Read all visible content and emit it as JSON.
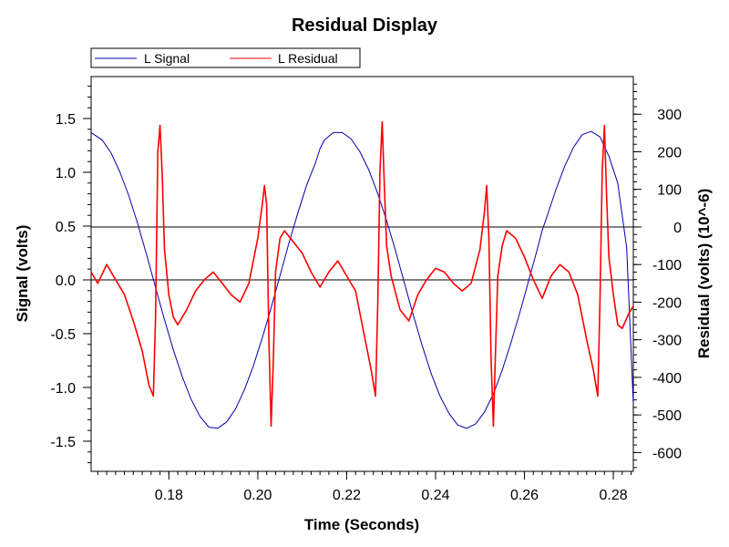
{
  "chart_data": {
    "type": "line",
    "title": "Residual Display",
    "xlabel": "Time (Seconds)",
    "ylabel_left": "Signal (volts)",
    "ylabel_right": "Residual (volts) (10^-6)",
    "xlim": [
      0.1625,
      0.2845
    ],
    "ylim_left": [
      -1.78,
      1.89
    ],
    "ylim_right": [
      -650,
      400
    ],
    "x_ticks": [
      0.18,
      0.2,
      0.22,
      0.24,
      0.26,
      0.28
    ],
    "x_tick_labels": [
      "0.18",
      "0.20",
      "0.22",
      "0.24",
      "0.26",
      "0.28"
    ],
    "y_left_ticks": [
      1.5,
      1.0,
      0.5,
      0.0,
      -0.5,
      -1.0,
      -1.5
    ],
    "y_left_tick_labels": [
      "1.5",
      "1.0",
      "0.5",
      "0.0",
      "-0.5",
      "-1.0",
      "-1.5"
    ],
    "y_right_ticks": [
      300,
      200,
      100,
      0,
      -100,
      -200,
      -300,
      -400,
      -500,
      -600
    ],
    "y_right_tick_labels": [
      "300",
      "200",
      "100",
      "0",
      "-100",
      "-200",
      "-300",
      "-400",
      "-500",
      "-600"
    ],
    "reference_lines": [
      {
        "axis": "left",
        "value": 0.0
      },
      {
        "axis": "right",
        "value": 0
      }
    ],
    "legend_placement": "top-left above plot",
    "grid": false,
    "series": [
      {
        "name": "L Signal",
        "axis": "left",
        "color": "#0000aa",
        "x": [
          0.1625,
          0.165,
          0.167,
          0.169,
          0.171,
          0.173,
          0.175,
          0.177,
          0.179,
          0.181,
          0.183,
          0.185,
          0.187,
          0.189,
          0.191,
          0.193,
          0.195,
          0.197,
          0.199,
          0.201,
          0.203,
          0.205,
          0.207,
          0.209,
          0.211,
          0.213,
          0.214,
          0.215,
          0.217,
          0.219,
          0.221,
          0.223,
          0.225,
          0.227,
          0.229,
          0.231,
          0.233,
          0.235,
          0.237,
          0.239,
          0.241,
          0.243,
          0.245,
          0.247,
          0.249,
          0.251,
          0.253,
          0.255,
          0.257,
          0.259,
          0.261,
          0.263,
          0.264,
          0.265,
          0.267,
          0.269,
          0.271,
          0.273,
          0.275,
          0.277,
          0.279,
          0.281,
          0.283,
          0.2845
        ],
        "y": [
          1.37,
          1.3,
          1.18,
          1.0,
          0.78,
          0.52,
          0.23,
          -0.07,
          -0.37,
          -0.65,
          -0.9,
          -1.11,
          -1.27,
          -1.37,
          -1.38,
          -1.32,
          -1.2,
          -1.02,
          -0.8,
          -0.54,
          -0.26,
          0.04,
          0.34,
          0.62,
          0.88,
          1.09,
          1.22,
          1.3,
          1.37,
          1.37,
          1.31,
          1.19,
          1.02,
          0.8,
          0.55,
          0.27,
          -0.03,
          -0.33,
          -0.61,
          -0.87,
          -1.08,
          -1.24,
          -1.35,
          -1.38,
          -1.34,
          -1.23,
          -1.06,
          -0.84,
          -0.58,
          -0.3,
          0.0,
          0.3,
          0.46,
          0.58,
          0.83,
          1.05,
          1.23,
          1.35,
          1.38,
          1.33,
          1.15,
          0.9,
          0.3,
          -1.15
        ]
      },
      {
        "name": "L Residual",
        "axis": "right",
        "color": "#ff0000",
        "x": [
          0.1625,
          0.164,
          0.166,
          0.168,
          0.17,
          0.172,
          0.174,
          0.1755,
          0.1765,
          0.177,
          0.1775,
          0.178,
          0.1785,
          0.179,
          0.18,
          0.181,
          0.182,
          0.184,
          0.186,
          0.188,
          0.19,
          0.192,
          0.194,
          0.196,
          0.198,
          0.2,
          0.201,
          0.2015,
          0.202,
          0.2025,
          0.203,
          0.2035,
          0.204,
          0.205,
          0.206,
          0.208,
          0.21,
          0.212,
          0.214,
          0.216,
          0.218,
          0.22,
          0.222,
          0.224,
          0.2255,
          0.2265,
          0.227,
          0.2275,
          0.228,
          0.2285,
          0.229,
          0.23,
          0.232,
          0.234,
          0.236,
          0.238,
          0.24,
          0.242,
          0.244,
          0.246,
          0.248,
          0.25,
          0.251,
          0.2515,
          0.252,
          0.2525,
          0.253,
          0.2535,
          0.254,
          0.255,
          0.256,
          0.258,
          0.26,
          0.262,
          0.264,
          0.266,
          0.268,
          0.27,
          0.272,
          0.274,
          0.2755,
          0.2765,
          0.277,
          0.2775,
          0.278,
          0.2785,
          0.279,
          0.28,
          0.281,
          0.282,
          0.2835,
          0.2845
        ],
        "y": [
          -120,
          -150,
          -100,
          -140,
          -180,
          -250,
          -330,
          -420,
          -450,
          -240,
          200,
          270,
          140,
          -60,
          -180,
          -240,
          -260,
          -220,
          -170,
          -140,
          -120,
          -150,
          -180,
          -200,
          -150,
          -30,
          60,
          110,
          60,
          -300,
          -530,
          -350,
          -120,
          -30,
          -10,
          -40,
          -70,
          -120,
          -160,
          -120,
          -90,
          -130,
          -170,
          -290,
          -380,
          -450,
          -200,
          150,
          280,
          100,
          -50,
          -130,
          -220,
          -250,
          -180,
          -140,
          -110,
          -120,
          -150,
          -170,
          -150,
          -60,
          40,
          110,
          -30,
          -350,
          -530,
          -330,
          -130,
          -50,
          -10,
          -30,
          -80,
          -140,
          -190,
          -130,
          -100,
          -120,
          -180,
          -300,
          -380,
          -450,
          -200,
          150,
          270,
          80,
          -80,
          -180,
          -260,
          -270,
          -230,
          -210
        ]
      }
    ]
  }
}
